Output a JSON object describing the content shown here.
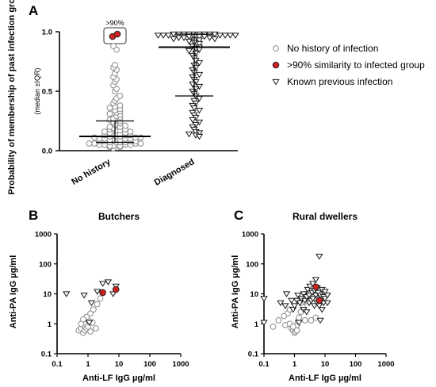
{
  "panels": {
    "a": {
      "letter": "A"
    },
    "b": {
      "letter": "B"
    },
    "c": {
      "letter": "C"
    }
  },
  "legend": [
    {
      "label": "No history of infection",
      "marker": "circle"
    },
    {
      "label": ">90% similarity to infected group",
      "marker": "red-dot"
    },
    {
      "label": "Known previous infection",
      "marker": "triangle"
    }
  ],
  "colors": {
    "no_history_stroke": "#8c8c8c",
    "similarity_fill": "#d11f1f",
    "triangle_stroke": "#1a1a1a",
    "axis": "#000000"
  },
  "chart_data": [
    {
      "type": "scatter",
      "title": "",
      "ylabel": "Probability of membership of past infection group",
      "ylabel_sub": "(median ±IQR)",
      "categories": [
        "No history",
        "Diagnosed"
      ],
      "ylim": [
        0,
        1.0
      ],
      "yticks": [
        "0.0",
        "0.5",
        "1.0"
      ],
      "annotation": ">90%",
      "series": [
        {
          "category": "No history",
          "marker": "circle",
          "values": [
            0.02,
            0.03,
            0.03,
            0.04,
            0.04,
            0.04,
            0.05,
            0.05,
            0.05,
            0.05,
            0.06,
            0.06,
            0.06,
            0.06,
            0.07,
            0.07,
            0.07,
            0.07,
            0.08,
            0.08,
            0.08,
            0.08,
            0.09,
            0.09,
            0.09,
            0.1,
            0.1,
            0.1,
            0.1,
            0.11,
            0.11,
            0.11,
            0.12,
            0.12,
            0.12,
            0.13,
            0.13,
            0.13,
            0.14,
            0.14,
            0.15,
            0.15,
            0.16,
            0.16,
            0.17,
            0.17,
            0.18,
            0.18,
            0.19,
            0.2,
            0.2,
            0.21,
            0.22,
            0.23,
            0.24,
            0.25,
            0.26,
            0.27,
            0.28,
            0.29,
            0.3,
            0.31,
            0.32,
            0.33,
            0.34,
            0.35,
            0.36,
            0.37,
            0.38,
            0.4,
            0.42,
            0.44,
            0.46,
            0.5,
            0.52,
            0.55,
            0.58,
            0.6,
            0.62,
            0.65,
            0.68,
            0.7,
            0.72,
            0.85,
            0.88
          ]
        },
        {
          "category": "No history",
          "marker": "red-dot",
          "values": [
            0.96,
            0.98
          ]
        },
        {
          "category": "Diagnosed",
          "marker": "triangle",
          "values": [
            0.98,
            0.98,
            0.98,
            0.98,
            0.98,
            0.98,
            0.98,
            0.98,
            0.98,
            0.97,
            0.97,
            0.97,
            0.97,
            0.97,
            0.97,
            0.97,
            0.96,
            0.96,
            0.96,
            0.96,
            0.95,
            0.95,
            0.95,
            0.94,
            0.94,
            0.93,
            0.93,
            0.92,
            0.91,
            0.9,
            0.88,
            0.87,
            0.86,
            0.85,
            0.84,
            0.82,
            0.8,
            0.78,
            0.76,
            0.74,
            0.72,
            0.7,
            0.68,
            0.66,
            0.64,
            0.62,
            0.6,
            0.58,
            0.56,
            0.54,
            0.52,
            0.5,
            0.48,
            0.46,
            0.44,
            0.42,
            0.4,
            0.38,
            0.36,
            0.34,
            0.32,
            0.3,
            0.28,
            0.26,
            0.24,
            0.22,
            0.2,
            0.18,
            0.16,
            0.15,
            0.14,
            0.13,
            0.12
          ]
        }
      ],
      "summary": [
        {
          "category": "No history",
          "median": 0.12,
          "q1": 0.07,
          "q3": 0.25
        },
        {
          "category": "Diagnosed",
          "median": 0.87,
          "q1": 0.46,
          "q3": 0.98
        }
      ]
    },
    {
      "type": "scatter",
      "title": "Butchers",
      "xlabel": "Anti-LF IgG µg/ml",
      "ylabel": "Anti-PA IgG µg/ml",
      "xscale": "log",
      "yscale": "log",
      "xlim": [
        0.1,
        1000
      ],
      "ylim": [
        0.1,
        1000
      ],
      "xticks": [
        "0.1",
        "1",
        "10",
        "100",
        "1000"
      ],
      "yticks": [
        "0.1",
        "1",
        "10",
        "100",
        "1000"
      ],
      "series": [
        {
          "marker": "circle",
          "points": [
            [
              0.5,
              0.6
            ],
            [
              0.6,
              0.7
            ],
            [
              0.7,
              0.5
            ],
            [
              0.7,
              0.9
            ],
            [
              0.8,
              1.1
            ],
            [
              0.8,
              0.6
            ],
            [
              0.9,
              0.7
            ],
            [
              1.0,
              0.8
            ],
            [
              1.0,
              1.3
            ],
            [
              0.6,
              1.0
            ],
            [
              0.9,
              1.7
            ],
            [
              1.2,
              2.2
            ],
            [
              1.4,
              1.1
            ],
            [
              1.5,
              3.0
            ],
            [
              2.0,
              4.5
            ],
            [
              2.5,
              7.0
            ],
            [
              1.8,
              0.7
            ],
            [
              0.7,
              1.4
            ],
            [
              1.2,
              0.55
            ]
          ]
        },
        {
          "marker": "triangle",
          "points": [
            [
              0.2,
              10
            ],
            [
              0.75,
              9
            ],
            [
              1.1,
              1.1
            ],
            [
              1.3,
              5.0
            ],
            [
              2.0,
              12
            ],
            [
              3.0,
              22
            ],
            [
              4.5,
              25
            ],
            [
              8.0,
              18
            ],
            [
              6.5,
              10
            ]
          ]
        },
        {
          "marker": "red-dot",
          "points": [
            [
              3.0,
              11
            ],
            [
              8.0,
              14
            ]
          ]
        }
      ]
    },
    {
      "type": "scatter",
      "title": "Rural dwellers",
      "xlabel": "Anti-LF IgG µg/ml",
      "ylabel": "Anti-PA IgG µg/ml",
      "xscale": "log",
      "yscale": "log",
      "xlim": [
        0.1,
        1000
      ],
      "ylim": [
        0.1,
        1000
      ],
      "xticks": [
        "0.1",
        "1",
        "10",
        "100",
        "1000"
      ],
      "yticks": [
        "0.1",
        "1",
        "10",
        "100",
        "1000"
      ],
      "series": [
        {
          "marker": "circle",
          "points": [
            [
              0.2,
              0.8
            ],
            [
              0.3,
              1.3
            ],
            [
              0.5,
              0.9
            ],
            [
              0.6,
              2.2
            ],
            [
              0.7,
              1.0
            ],
            [
              0.8,
              0.7
            ],
            [
              0.9,
              0.6
            ],
            [
              1.0,
              0.8
            ],
            [
              1.0,
              0.5
            ],
            [
              1.1,
              0.7
            ],
            [
              1.2,
              0.9
            ],
            [
              1.3,
              1.2
            ],
            [
              1.4,
              1.6
            ],
            [
              1.6,
              2.5
            ],
            [
              1.9,
              3.5
            ],
            [
              2.2,
              5.5
            ],
            [
              1.1,
              0.55
            ],
            [
              0.9,
              0.8
            ],
            [
              1.2,
              0.6
            ],
            [
              0.45,
              1.8
            ],
            [
              0.7,
              3.0
            ],
            [
              3.5,
              1.3
            ],
            [
              5.0,
              1.6
            ],
            [
              2.2,
              1.3
            ]
          ]
        },
        {
          "marker": "triangle",
          "points": [
            [
              0.1,
              7
            ],
            [
              0.1,
              1.1
            ],
            [
              0.35,
              5
            ],
            [
              0.5,
              4
            ],
            [
              0.55,
              10
            ],
            [
              0.8,
              6
            ],
            [
              0.9,
              3
            ],
            [
              1.0,
              4
            ],
            [
              1.2,
              6
            ],
            [
              1.3,
              9
            ],
            [
              1.5,
              5
            ],
            [
              1.7,
              7
            ],
            [
              2.0,
              3
            ],
            [
              2.0,
              10
            ],
            [
              2.2,
              6
            ],
            [
              2.5,
              8
            ],
            [
              2.7,
              14
            ],
            [
              3.0,
              5
            ],
            [
              3.0,
              9
            ],
            [
              3.2,
              18
            ],
            [
              3.5,
              6
            ],
            [
              3.8,
              11
            ],
            [
              4.0,
              7
            ],
            [
              4.0,
              22
            ],
            [
              4.5,
              4
            ],
            [
              4.5,
              13
            ],
            [
              5.0,
              9
            ],
            [
              5.0,
              30
            ],
            [
              5.5,
              5
            ],
            [
              5.5,
              16
            ],
            [
              6.0,
              7
            ],
            [
              6.0,
              11
            ],
            [
              6.5,
              180
            ],
            [
              6.5,
              4
            ],
            [
              7.0,
              9
            ],
            [
              7.5,
              6
            ],
            [
              8.0,
              14
            ],
            [
              8.0,
              3
            ],
            [
              9.0,
              8
            ],
            [
              9.0,
              5
            ],
            [
              10.0,
              12
            ],
            [
              10.0,
              7
            ],
            [
              12.0,
              5
            ],
            [
              12.0,
              9
            ],
            [
              1.4,
              1.1
            ],
            [
              2.5,
              2.5
            ],
            [
              7.0,
              1.3
            ]
          ]
        },
        {
          "marker": "red-dot",
          "points": [
            [
              5.0,
              17
            ],
            [
              6.5,
              6
            ]
          ]
        }
      ]
    }
  ]
}
